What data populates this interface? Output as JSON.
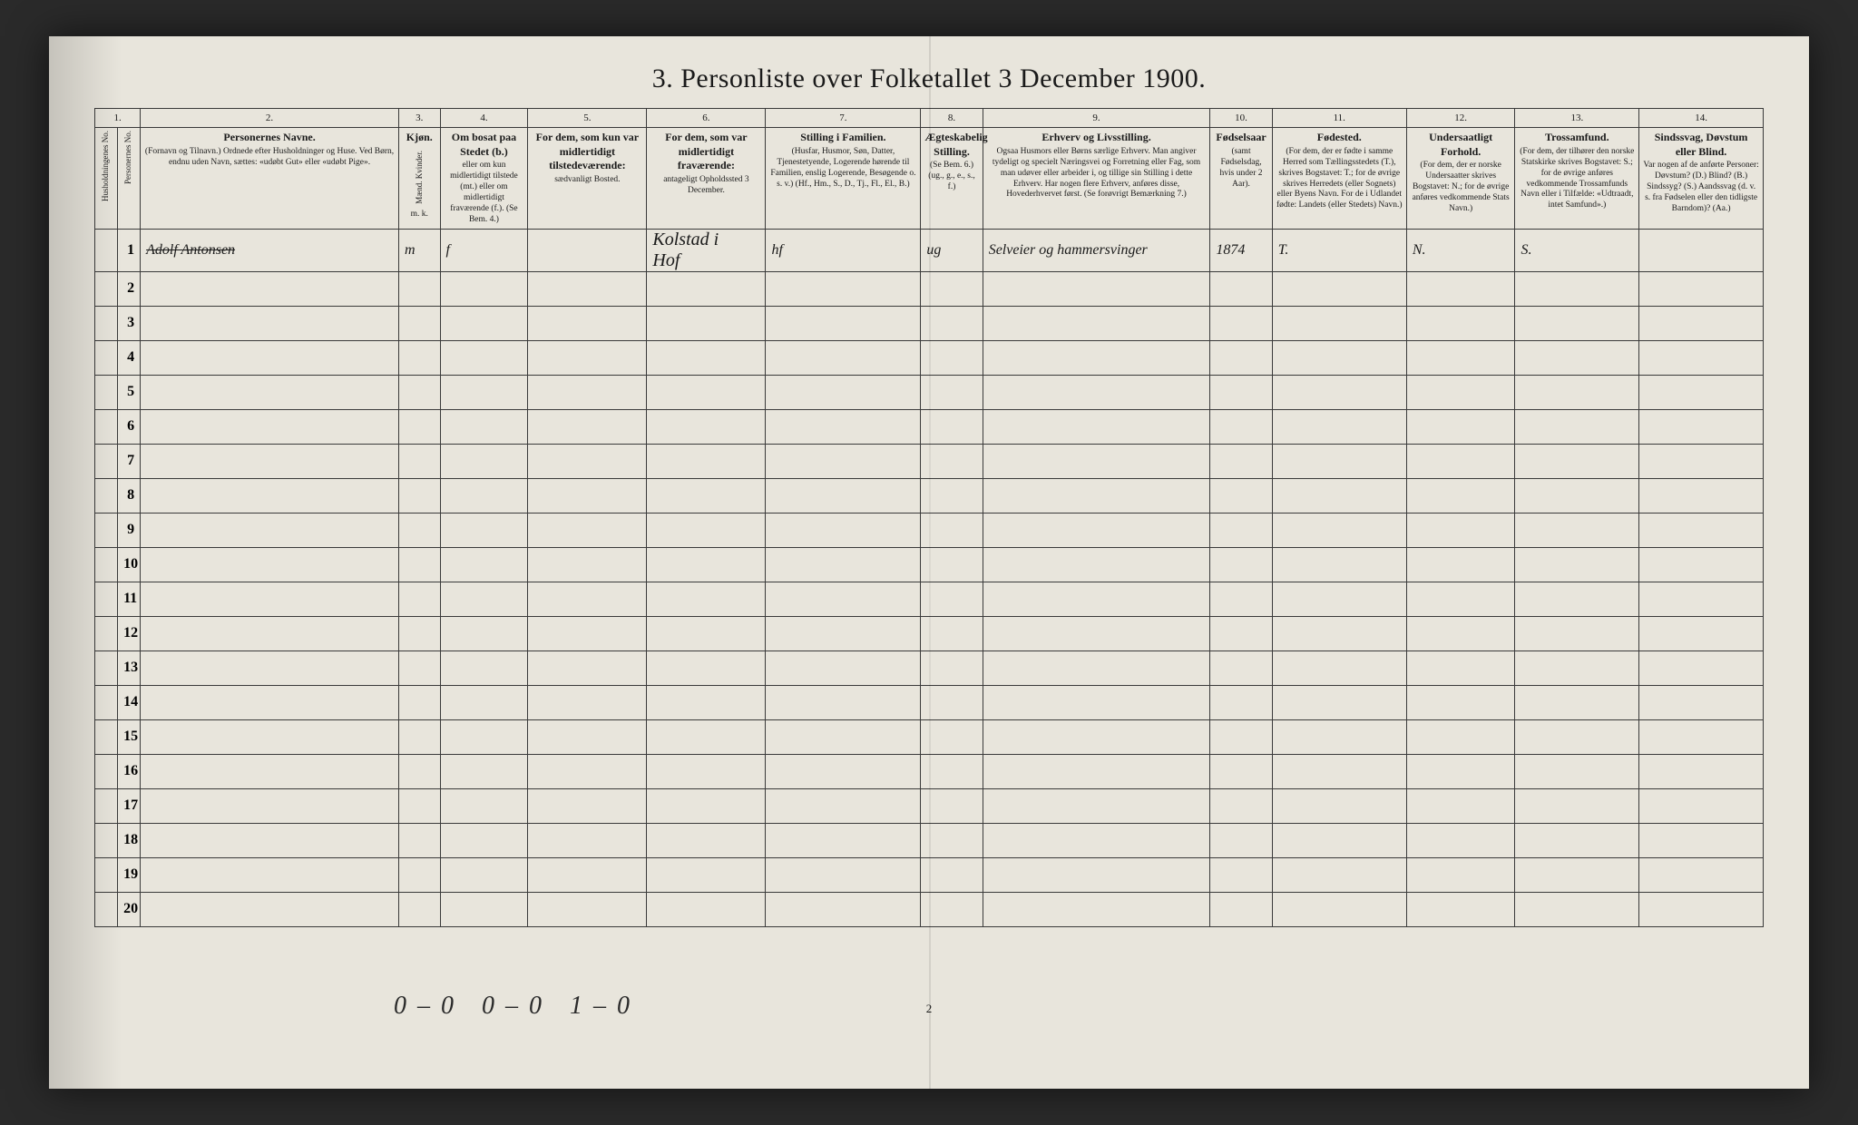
{
  "title": "3.  Personliste over Folketallet 3 December 1900.",
  "page_number": "2",
  "columns": [
    {
      "num": "1.",
      "label": "Husholdningenes No."
    },
    {
      "num": "",
      "label": "Personernes No."
    },
    {
      "num": "2.",
      "main": "Personernes Navne.",
      "sub": "(Fornavn og Tilnavn.)\nOrdnede efter Husholdninger og Huse.\nVed Børn, endnu uden Navn, sættes: «udøbt Gut» eller «udøbt Pige»."
    },
    {
      "num": "3.",
      "main": "Kjøn.",
      "sub": "Mænd. Kvinder.",
      "sub2": "m.   k."
    },
    {
      "num": "4.",
      "main": "Om bosat paa Stedet (b.)",
      "sub": "eller om kun midlertidigt tilstede (mt.) eller om midlertidigt fraværende (f.).\n(Se Bem. 4.)"
    },
    {
      "num": "5.",
      "main": "For dem, som kun var midlertidigt tilstedeværende:",
      "sub": "sædvanligt Bosted."
    },
    {
      "num": "6.",
      "main": "For dem, som var midlertidigt fraværende:",
      "sub": "antageligt Opholdssted 3 December."
    },
    {
      "num": "7.",
      "main": "Stilling i Familien.",
      "sub": "(Husfar, Husmor, Søn, Datter, Tjenestetyende, Logerende hørende til Familien, enslig Logerende, Besøgende o. s. v.)\n(Hf., Hm., S., D., Tj., Fl., El., B.)"
    },
    {
      "num": "8.",
      "main": "Ægteskabelig Stilling.",
      "sub": "(Se Bem. 6.)\n(ug., g., e., s., f.)"
    },
    {
      "num": "9.",
      "main": "Erhverv og Livsstilling.",
      "sub": "Ogsaa Husmors eller Børns særlige Erhverv.\nMan angiver tydeligt og specielt Næringsvei og Forretning eller Fag, som man udøver eller arbeider i,\nog tillige sin Stilling i dette Erhverv.\nHar nogen flere Erhverv, anføres disse, Hovederhvervet først.\n(Se forøvrigt Bemærkning 7.)"
    },
    {
      "num": "10.",
      "main": "Fødselsaar",
      "sub": "(samt Fødselsdag, hvis under 2 Aar)."
    },
    {
      "num": "11.",
      "main": "Fødested.",
      "sub": "(For dem, der er fødte i samme Herred som Tællingsstedets (T.), skrives Bogstavet: T.;\nfor de øvrige skrives Herredets (eller Sognets) eller Byens Navn.\nFor de i Udlandet fødte: Landets (eller Stedets) Navn.)"
    },
    {
      "num": "12.",
      "main": "Undersaatligt Forhold.",
      "sub": "(For dem, der er norske Undersaatter skrives Bogstavet: N.; for de øvrige anføres vedkommende Stats Navn.)"
    },
    {
      "num": "13.",
      "main": "Trossamfund.",
      "sub": "(For dem, der tilhører den norske Statskirke skrives Bogstavet: S.; for de øvrige anføres vedkommende Trossamfunds Navn eller i Tilfælde: «Udtraadt, intet Samfund».)"
    },
    {
      "num": "14.",
      "main": "Sindssvag, Døvstum eller Blind.",
      "sub": "Var nogen af de anførte Personer:\nDøvstum?   (D.)\nBlind?        (B.)\nSindssyg?   (S.)\nAandssvag (d. v. s. fra Fødselen eller den tidligste Barndom)? (Aa.)"
    }
  ],
  "rows": [
    {
      "num": "1",
      "name": "Adolf Antonsen",
      "name_strike": true,
      "sex": "m",
      "present": "f",
      "temp_pres": "",
      "temp_abs": "Kolstad i\nHof",
      "family": "hf",
      "marital": "ug",
      "occupation": "Selveier og hammersvinger",
      "birth": "1874",
      "birthplace": "T.",
      "citizen": "N.",
      "religion": "S.",
      "disability": ""
    }
  ],
  "empty_row_count": 19,
  "footer_tally": "0–0   0–0   1–0",
  "colors": {
    "page_bg": "#e8e5dc",
    "ink": "#1a1a1a",
    "border": "#3a3a3a",
    "outer_bg": "#2a2a2a"
  }
}
